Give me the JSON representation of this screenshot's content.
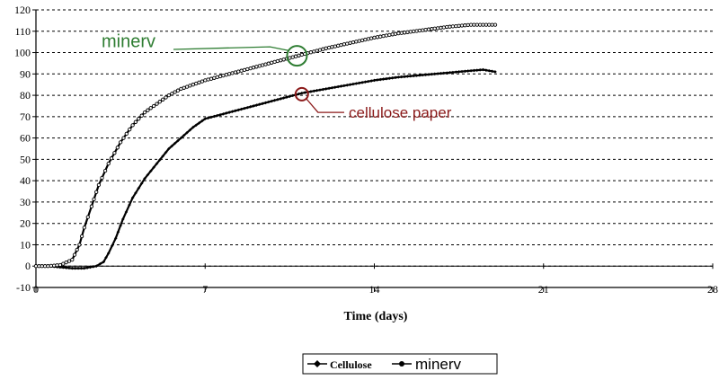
{
  "chart_data": {
    "type": "line",
    "xlabel": "Time (days)",
    "ylabel": "",
    "xlim": [
      0,
      28
    ],
    "ylim": [
      -10,
      120
    ],
    "x_ticks": [
      0,
      7,
      14,
      21,
      28
    ],
    "y_ticks": [
      -10,
      0,
      10,
      20,
      30,
      40,
      50,
      60,
      70,
      80,
      90,
      100,
      110,
      120
    ],
    "grid": "horizontal dashed",
    "legend_position": "bottom-center",
    "series": [
      {
        "name": "Cellulose",
        "color": "#000000",
        "marker": "diamond",
        "points": [
          [
            0,
            0
          ],
          [
            0.5,
            0
          ],
          [
            1,
            -0.5
          ],
          [
            1.5,
            -1
          ],
          [
            2,
            -1
          ],
          [
            2.5,
            0
          ],
          [
            2.8,
            2
          ],
          [
            3,
            6
          ],
          [
            3.3,
            13
          ],
          [
            3.6,
            22
          ],
          [
            4,
            32
          ],
          [
            4.5,
            41
          ],
          [
            5,
            48
          ],
          [
            5.5,
            55
          ],
          [
            6,
            60
          ],
          [
            6.5,
            65
          ],
          [
            7,
            69
          ],
          [
            8,
            72
          ],
          [
            9,
            75
          ],
          [
            10,
            78
          ],
          [
            11,
            81
          ],
          [
            12,
            83
          ],
          [
            13,
            85
          ],
          [
            14,
            87
          ],
          [
            15,
            88.5
          ],
          [
            16,
            89.5
          ],
          [
            17,
            90.5
          ],
          [
            18,
            91.5
          ],
          [
            18.5,
            92
          ],
          [
            19,
            91
          ]
        ]
      },
      {
        "name": "minerv",
        "color": "#000000",
        "marker": "circle",
        "points": [
          [
            0,
            0
          ],
          [
            0.5,
            0
          ],
          [
            1,
            0.5
          ],
          [
            1.5,
            3
          ],
          [
            1.8,
            10
          ],
          [
            2,
            18
          ],
          [
            2.3,
            28
          ],
          [
            2.6,
            38
          ],
          [
            3,
            48
          ],
          [
            3.5,
            58
          ],
          [
            4,
            66
          ],
          [
            4.5,
            72
          ],
          [
            5,
            76
          ],
          [
            5.5,
            80
          ],
          [
            6,
            83
          ],
          [
            7,
            87
          ],
          [
            8,
            90
          ],
          [
            9,
            93
          ],
          [
            10,
            96
          ],
          [
            11,
            99
          ],
          [
            12,
            102
          ],
          [
            13,
            104.5
          ],
          [
            14,
            107
          ],
          [
            15,
            109
          ],
          [
            16,
            110.5
          ],
          [
            17,
            112
          ],
          [
            18,
            113
          ],
          [
            19,
            113
          ]
        ]
      }
    ],
    "annotations": [
      {
        "text": "minerv",
        "color": "#2e7d32",
        "marker_x": 10.8,
        "marker_y": 98.5
      },
      {
        "text": "cellulose paper",
        "color": "#8b1a1a",
        "marker_x": 11,
        "marker_y": 80.5
      }
    ]
  },
  "legend": {
    "items": [
      "Cellulose",
      "minerv"
    ]
  }
}
